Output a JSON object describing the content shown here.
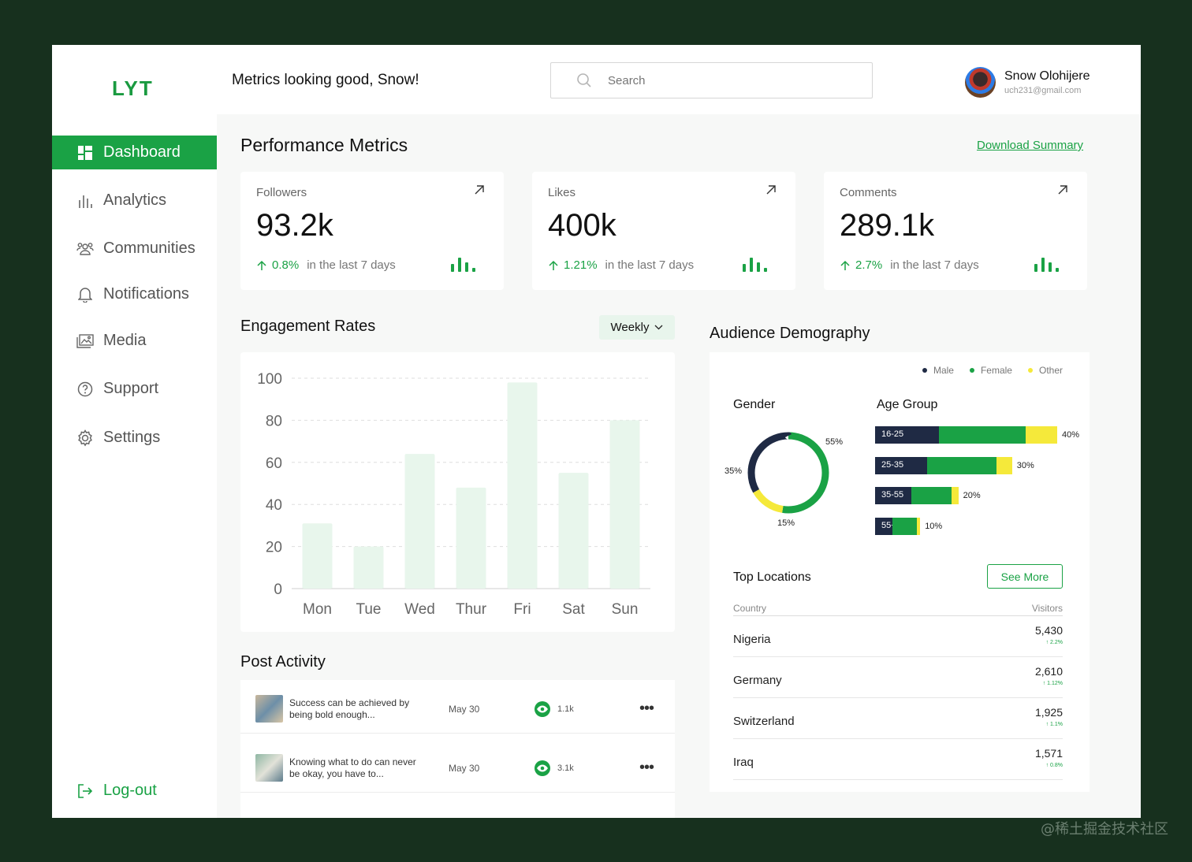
{
  "header": {
    "logo": "LYT",
    "greeting": "Metrics looking good, Snow!",
    "search_placeholder": "Search",
    "user_name": "Snow Olohijere",
    "user_email": "uch231@gmail.com"
  },
  "sidebar": {
    "items": [
      {
        "label": "Dashboard",
        "icon": "dashboard-icon"
      },
      {
        "label": "Analytics",
        "icon": "analytics-icon"
      },
      {
        "label": "Communities",
        "icon": "communities-icon"
      },
      {
        "label": "Notifications",
        "icon": "bell-icon"
      },
      {
        "label": "Media",
        "icon": "media-icon"
      },
      {
        "label": "Support",
        "icon": "support-icon"
      },
      {
        "label": "Settings",
        "icon": "gear-icon"
      }
    ],
    "logout": "Log-out"
  },
  "performance": {
    "title": "Performance Metrics",
    "download": "Download Summary",
    "metrics": [
      {
        "label": "Followers",
        "value": "93.2k",
        "change": "0.8%",
        "period": "in the last 7 days"
      },
      {
        "label": "Likes",
        "value": "400k",
        "change": "1.21%",
        "period": "in the last 7 days"
      },
      {
        "label": "Comments",
        "value": "289.1k",
        "change": "2.7%",
        "period": "in the last 7 days"
      }
    ]
  },
  "engagement": {
    "title": "Engagement Rates",
    "filter": "Weekly"
  },
  "posts": {
    "title": "Post Activity",
    "rows": [
      {
        "text": "Success can be achieved by being bold enough...",
        "date": "May 30",
        "views": "1.1k"
      },
      {
        "text": "Knowing what to do can never be okay, you have to...",
        "date": "May 30",
        "views": "3.1k"
      }
    ]
  },
  "demography": {
    "title": "Audience Demography",
    "legend": [
      {
        "label": "Male",
        "color": "#1f2a44"
      },
      {
        "label": "Female",
        "color": "#1aa245"
      },
      {
        "label": "Other",
        "color": "#f5e93a"
      }
    ],
    "gender_title": "Gender",
    "gender": {
      "male": 35,
      "female": 55,
      "other": 15
    },
    "gender_labels": {
      "female": "55%",
      "male": "35%",
      "other": "15%"
    },
    "age_title": "Age Group",
    "age_groups": [
      {
        "label": "16-25",
        "pct": "40%",
        "male": 37,
        "female": 50,
        "other": 18,
        "total": 40
      },
      {
        "label": "25-35",
        "pct": "30%",
        "male": 30,
        "female": 40,
        "other": 9,
        "total": 30
      },
      {
        "label": "35-55",
        "pct": "20%",
        "male": 21,
        "female": 23,
        "other": 4,
        "total": 20
      },
      {
        "label": "55+",
        "pct": "10%",
        "male": 10,
        "female": 14,
        "other": 2,
        "total": 10
      }
    ]
  },
  "locations": {
    "title": "Top Locations",
    "see_more": "See More",
    "col_country": "Country",
    "col_visitors": "Visitors",
    "rows": [
      {
        "country": "Nigeria",
        "visitors": "5,430",
        "change": "2.2%"
      },
      {
        "country": "Germany",
        "visitors": "2,610",
        "change": "1.12%"
      },
      {
        "country": "Switzerland",
        "visitors": "1,925",
        "change": "1.1%"
      },
      {
        "country": "Iraq",
        "visitors": "1,571",
        "change": "0.8%"
      }
    ]
  },
  "chart_data": {
    "type": "bar",
    "title": "Engagement Rates",
    "categories": [
      "Mon",
      "Tue",
      "Wed",
      "Thur",
      "Fri",
      "Sat",
      "Sun"
    ],
    "values": [
      31,
      20,
      64,
      48,
      98,
      55,
      80
    ],
    "ylim": [
      0,
      100
    ],
    "yticks": [
      0,
      20,
      40,
      60,
      80,
      100
    ],
    "xlabel": "",
    "ylabel": "",
    "bar_color": "#e8f6ec"
  },
  "watermark": "@稀土掘金技术社区"
}
